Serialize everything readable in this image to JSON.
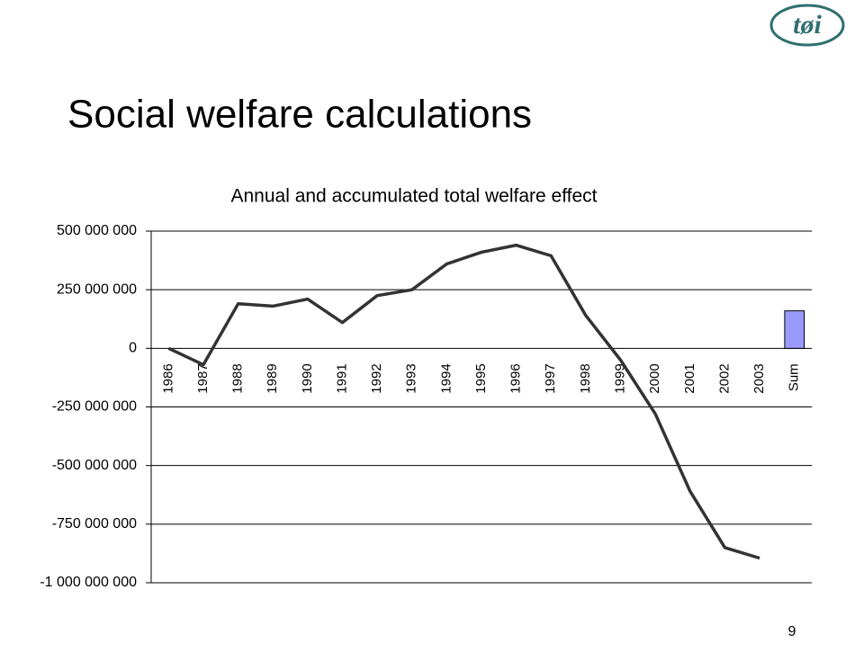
{
  "slide_title": "Social welfare calculations",
  "logo": "tøi",
  "page_number": "9",
  "chart_data": {
    "type": "line",
    "title": "Annual and accumulated total welfare effect",
    "categories": [
      "1986",
      "1987",
      "1988",
      "1989",
      "1990",
      "1991",
      "1992",
      "1993",
      "1994",
      "1995",
      "1996",
      "1997",
      "1998",
      "1999",
      "2000",
      "2001",
      "2002",
      "2003",
      "Sum"
    ],
    "series": [
      {
        "type": "line",
        "color": "#333333",
        "values": [
          0,
          -70000000,
          190000000,
          180000000,
          210000000,
          110000000,
          225000000,
          250000000,
          360000000,
          410000000,
          440000000,
          395000000,
          140000000,
          -50000000,
          -280000000,
          -610000000,
          -850000000,
          -895000000,
          null
        ]
      },
      {
        "type": "bar",
        "color": "#9999ff",
        "values": [
          null,
          null,
          null,
          null,
          null,
          null,
          null,
          null,
          null,
          null,
          null,
          null,
          null,
          null,
          null,
          null,
          null,
          null,
          160000000
        ]
      }
    ],
    "ylim": [
      -1000000000,
      500000000
    ],
    "yticks": [
      {
        "value": 500000000,
        "label": "500 000 000"
      },
      {
        "value": 250000000,
        "label": "250 000 000"
      },
      0,
      {
        "value": -250000000,
        "label": "-250 000 000"
      },
      {
        "value": -500000000,
        "label": "-500 000 000"
      },
      {
        "value": -750000000,
        "label": "-750 000 000"
      },
      {
        "value": -1000000000,
        "label": "-1 000 000 000"
      }
    ],
    "grid": true
  }
}
